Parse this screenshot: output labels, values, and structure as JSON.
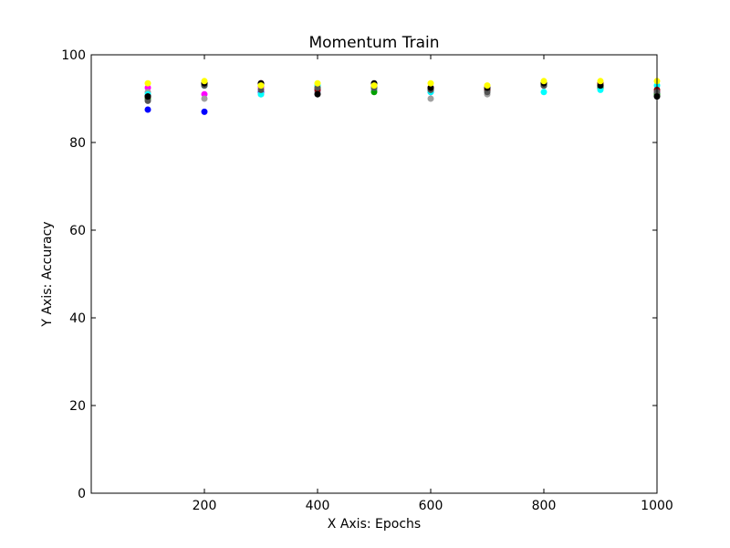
{
  "chart_data": {
    "type": "scatter",
    "title": "Momentum Train",
    "xlabel": "X Axis: Epochs",
    "ylabel": "Y Axis: Accuracy",
    "xlim": [
      0,
      1000
    ],
    "ylim": [
      0,
      100
    ],
    "xticks": [
      200,
      400,
      600,
      800,
      1000
    ],
    "yticks": [
      0,
      20,
      40,
      60,
      80,
      100
    ],
    "grid": false,
    "series": [
      {
        "color": "#0000ff",
        "points": [
          [
            100,
            87.5
          ],
          [
            200,
            87.0
          ],
          [
            300,
            91.5
          ],
          [
            400,
            91.5
          ],
          [
            500,
            92.0
          ],
          [
            600,
            91.5
          ],
          [
            700,
            92.0
          ],
          [
            800,
            93.0
          ],
          [
            900,
            92.5
          ],
          [
            1000,
            91.0
          ]
        ]
      },
      {
        "color": "#ff00ff",
        "points": [
          [
            100,
            92.5
          ],
          [
            200,
            91.0
          ],
          [
            300,
            92.5
          ],
          [
            400,
            92.0
          ],
          [
            500,
            92.5
          ],
          [
            600,
            92.5
          ],
          [
            700,
            92.5
          ],
          [
            800,
            93.0
          ],
          [
            900,
            93.0
          ],
          [
            1000,
            91.5
          ]
        ]
      },
      {
        "color": "#a0a0a0",
        "points": [
          [
            100,
            91.5
          ],
          [
            200,
            90.0
          ],
          [
            300,
            91.0
          ],
          [
            400,
            91.5
          ],
          [
            500,
            92.0
          ],
          [
            600,
            90.0
          ],
          [
            700,
            91.0
          ],
          [
            800,
            93.0
          ],
          [
            900,
            93.0
          ],
          [
            1000,
            91.0
          ]
        ]
      },
      {
        "color": "#00a000",
        "points": [
          [
            100,
            90.0
          ],
          [
            200,
            93.0
          ],
          [
            300,
            93.0
          ],
          [
            400,
            92.5
          ],
          [
            500,
            91.5
          ],
          [
            600,
            92.0
          ],
          [
            700,
            92.0
          ],
          [
            800,
            93.0
          ],
          [
            900,
            92.5
          ],
          [
            1000,
            91.0
          ]
        ]
      },
      {
        "color": "#00ffff",
        "points": [
          [
            100,
            91.0
          ],
          [
            200,
            93.0
          ],
          [
            300,
            91.0
          ],
          [
            400,
            93.0
          ],
          [
            500,
            92.5
          ],
          [
            600,
            91.5
          ],
          [
            700,
            92.0
          ],
          [
            800,
            91.5
          ],
          [
            900,
            92.0
          ],
          [
            1000,
            93.0
          ]
        ]
      },
      {
        "color": "#8b0000",
        "points": [
          [
            100,
            90.5
          ],
          [
            200,
            93.5
          ],
          [
            300,
            93.5
          ],
          [
            400,
            92.0
          ],
          [
            500,
            93.0
          ],
          [
            600,
            92.5
          ],
          [
            700,
            92.0
          ],
          [
            800,
            93.5
          ],
          [
            900,
            93.5
          ],
          [
            1000,
            92.0
          ]
        ]
      },
      {
        "color": "#555555",
        "points": [
          [
            100,
            89.5
          ],
          [
            200,
            93.0
          ],
          [
            300,
            92.0
          ],
          [
            400,
            92.5
          ],
          [
            500,
            92.5
          ],
          [
            600,
            92.0
          ],
          [
            700,
            91.5
          ],
          [
            800,
            93.0
          ],
          [
            900,
            93.0
          ],
          [
            1000,
            91.5
          ]
        ]
      },
      {
        "color": "#000000",
        "points": [
          [
            100,
            90.5
          ],
          [
            200,
            93.5
          ],
          [
            300,
            93.5
          ],
          [
            400,
            91.0
          ],
          [
            500,
            93.5
          ],
          [
            600,
            92.5
          ],
          [
            700,
            92.5
          ],
          [
            800,
            93.5
          ],
          [
            900,
            93.0
          ],
          [
            1000,
            90.5
          ]
        ]
      },
      {
        "color": "#ffff00",
        "points": [
          [
            100,
            93.5
          ],
          [
            200,
            94.0
          ],
          [
            300,
            93.0
          ],
          [
            400,
            93.5
          ],
          [
            500,
            93.0
          ],
          [
            600,
            93.5
          ],
          [
            700,
            93.0
          ],
          [
            800,
            94.0
          ],
          [
            900,
            94.0
          ],
          [
            1000,
            94.0
          ]
        ]
      }
    ]
  }
}
